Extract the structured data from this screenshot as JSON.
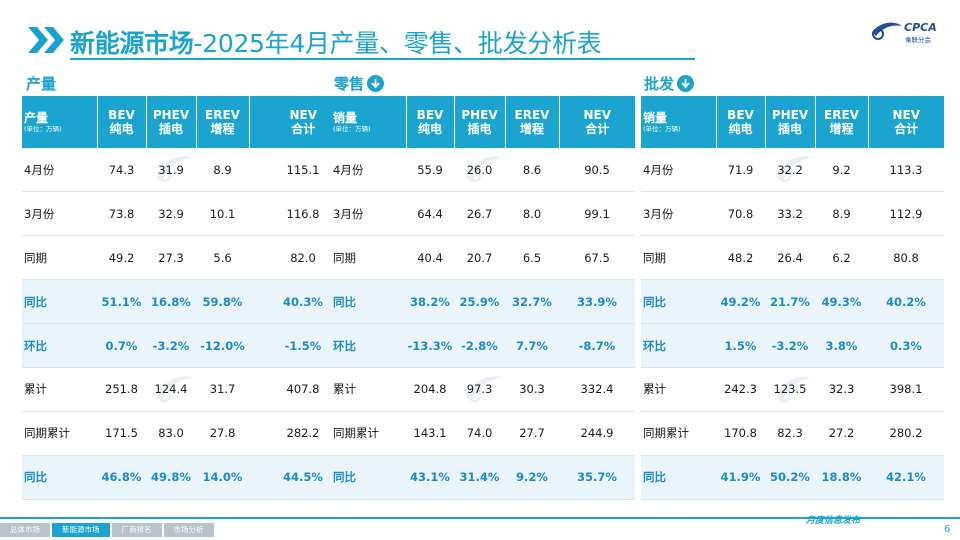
{
  "header": {
    "title_bold": "新能源市场",
    "title_rest": "-2025年4月产量、零售、批发分析表",
    "logo_text": "CPCA",
    "logo_sub": "乘联分会"
  },
  "sections": [
    {
      "id": "production",
      "title": "产量",
      "row_label_header": "产量",
      "unit": "(单位：万辆)",
      "has_arrow": false
    },
    {
      "id": "retail",
      "title": "零售",
      "row_label_header": "销量",
      "unit": "(单位：万辆)",
      "has_arrow": true
    },
    {
      "id": "wholesale",
      "title": "批发",
      "row_label_header": "销量",
      "unit": "(单位：万辆)",
      "has_arrow": true
    }
  ],
  "columns": [
    {
      "top": "BEV",
      "bottom": "纯电"
    },
    {
      "top": "PHEV",
      "bottom": "插电"
    },
    {
      "top": "EREV",
      "bottom": "增程"
    },
    {
      "top": "NEV",
      "bottom": "合计"
    }
  ],
  "row_labels": [
    "4月份",
    "3月份",
    "同期",
    "同比",
    "环比",
    "累计",
    "同期累计",
    "同比"
  ],
  "tables": {
    "production": [
      [
        "74.3",
        "31.9",
        "8.9",
        "115.1"
      ],
      [
        "73.8",
        "32.9",
        "10.1",
        "116.8"
      ],
      [
        "49.2",
        "27.3",
        "5.6",
        "82.0"
      ],
      [
        "51.1%",
        "16.8%",
        "59.8%",
        "40.3%"
      ],
      [
        "0.7%",
        "-3.2%",
        "-12.0%",
        "-1.5%"
      ],
      [
        "251.8",
        "124.4",
        "31.7",
        "407.8"
      ],
      [
        "171.5",
        "83.0",
        "27.8",
        "282.2"
      ],
      [
        "46.8%",
        "49.8%",
        "14.0%",
        "44.5%"
      ]
    ],
    "retail": [
      [
        "55.9",
        "26.0",
        "8.6",
        "90.5"
      ],
      [
        "64.4",
        "26.7",
        "8.0",
        "99.1"
      ],
      [
        "40.4",
        "20.7",
        "6.5",
        "67.5"
      ],
      [
        "38.2%",
        "25.9%",
        "32.7%",
        "33.9%"
      ],
      [
        "-13.3%",
        "-2.8%",
        "7.7%",
        "-8.7%"
      ],
      [
        "204.8",
        "97.3",
        "30.3",
        "332.4"
      ],
      [
        "143.1",
        "74.0",
        "27.7",
        "244.9"
      ],
      [
        "43.1%",
        "31.4%",
        "9.2%",
        "35.7%"
      ]
    ],
    "wholesale": [
      [
        "71.9",
        "32.2",
        "9.2",
        "113.3"
      ],
      [
        "70.8",
        "33.2",
        "8.9",
        "112.9"
      ],
      [
        "48.2",
        "26.4",
        "6.2",
        "80.8"
      ],
      [
        "49.2%",
        "21.7%",
        "49.3%",
        "40.2%"
      ],
      [
        "1.5%",
        "-3.2%",
        "3.8%",
        "0.3%"
      ],
      [
        "242.3",
        "123.5",
        "32.3",
        "398.1"
      ],
      [
        "170.8",
        "82.3",
        "27.2",
        "280.2"
      ],
      [
        "41.9%",
        "50.2%",
        "18.8%",
        "42.1%"
      ]
    ]
  },
  "highlight_rows": [
    3,
    4,
    7
  ],
  "footer": {
    "tabs": [
      "总体市场",
      "新能源市场",
      "厂商排名",
      "市场分析"
    ],
    "active_tab": 1,
    "slogan": "月度信息发布",
    "page": "6"
  },
  "colors": {
    "accent": "#1aa3cf",
    "header_bg": "#1ba4cf",
    "highlight_text": "#1d8ac8",
    "highlight_bg": "#eaf5fb"
  }
}
